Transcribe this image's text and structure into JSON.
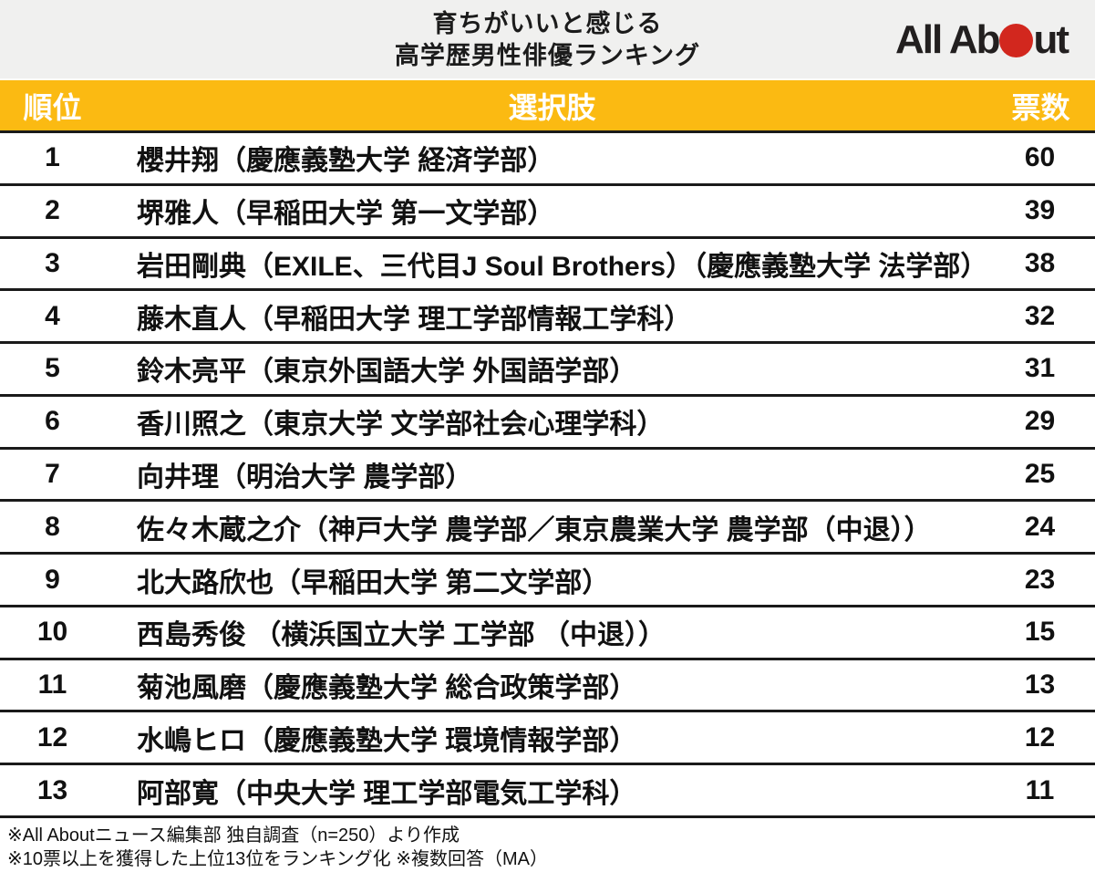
{
  "header": {
    "title_line1": "育ちがいいと感じる",
    "title_line2": "高学歴男性俳優ランキング",
    "logo": {
      "name": "All About",
      "text_before_circle": "All Ab",
      "text_after_circle": "ut",
      "circle_color": "#d2271e"
    }
  },
  "table": {
    "columns": {
      "rank": "順位",
      "choice": "選択肢",
      "votes": "票数"
    }
  },
  "chart_data": {
    "type": "table",
    "title": "育ちがいいと感じる高学歴男性俳優ランキング",
    "columns": [
      "順位",
      "選択肢",
      "票数"
    ],
    "rows": [
      [
        "1",
        "櫻井翔（慶應義塾大学 経済学部）",
        "60"
      ],
      [
        "2",
        "堺雅人（早稲田大学 第一文学部）",
        "39"
      ],
      [
        "3",
        "岩田剛典（EXILE、三代目J Soul Brothers）（慶應義塾大学 法学部）",
        "38"
      ],
      [
        "4",
        "藤木直人（早稲田大学 理工学部情報工学科）",
        "32"
      ],
      [
        "5",
        "鈴木亮平（東京外国語大学 外国語学部）",
        "31"
      ],
      [
        "6",
        "香川照之（東京大学 文学部社会心理学科）",
        "29"
      ],
      [
        "7",
        "向井理（明治大学 農学部）",
        "25"
      ],
      [
        "8",
        "佐々木蔵之介（神戸大学 農学部／東京農業大学 農学部（中退））",
        "24"
      ],
      [
        "9",
        "北大路欣也（早稲田大学 第二文学部）",
        "23"
      ],
      [
        "10",
        "西島秀俊 （横浜国立大学 工学部 （中退））",
        "15"
      ],
      [
        "11",
        "菊池風磨（慶應義塾大学 総合政策学部）",
        "13"
      ],
      [
        "12",
        "水嶋ヒロ（慶應義塾大学 環境情報学部）",
        "12"
      ],
      [
        "13",
        "阿部寛（中央大学 理工学部電気工学科）",
        "11"
      ]
    ]
  },
  "footer": {
    "note1": "※All Aboutニュース編集部 独自調査（n=250）より作成",
    "note2": "※10票以上を獲得した上位13位をランキング化 ※複数回答（MA）"
  },
  "colors": {
    "header_band_bg": "#f0f0ef",
    "table_header_bg": "#fbba12",
    "separator": "#1a1a1a",
    "logo_circle": "#d2271e"
  }
}
